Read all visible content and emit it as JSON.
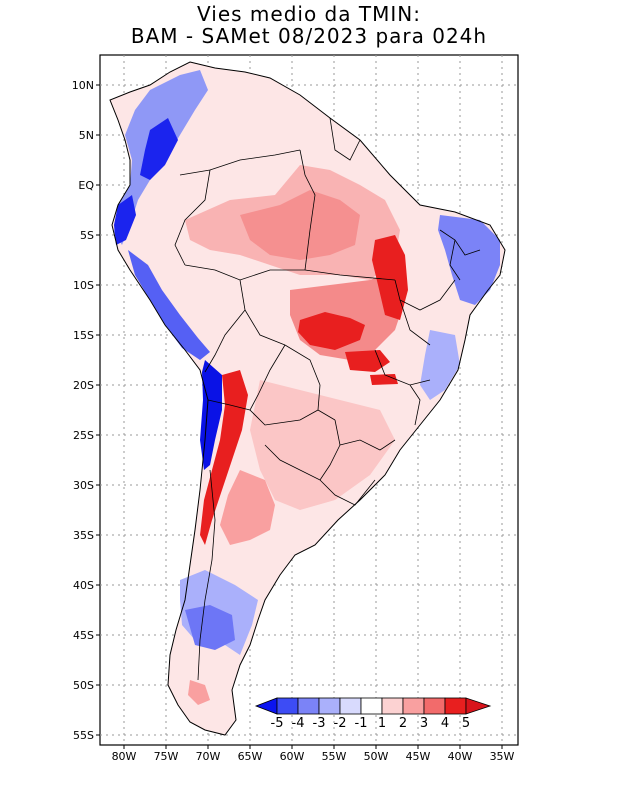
{
  "title": {
    "line1": "Vies medio da TMIN:",
    "line2": "BAM - SAMet 08/2023  para 024h"
  },
  "axes": {
    "lat_labels": [
      "10N",
      "5N",
      "EQ",
      "5S",
      "10S",
      "15S",
      "20S",
      "25S",
      "30S",
      "35S",
      "40S",
      "45S",
      "50S",
      "55S"
    ],
    "lon_labels": [
      "80W",
      "75W",
      "70W",
      "65W",
      "60W",
      "55W",
      "50W",
      "45W",
      "40W",
      "35W"
    ]
  },
  "colorbar": {
    "labels": [
      "-5",
      "-4",
      "-3",
      "-2",
      "-1",
      "1",
      "2",
      "3",
      "4",
      "5"
    ],
    "colors": [
      "#0b14f0",
      "#3d4cf5",
      "#7b83f7",
      "#aab0fb",
      "#d8dafd",
      "#ffffff",
      "#fcd2d2",
      "#f9a0a0",
      "#f26b6b",
      "#e81f1f",
      "#d8141c"
    ]
  }
}
